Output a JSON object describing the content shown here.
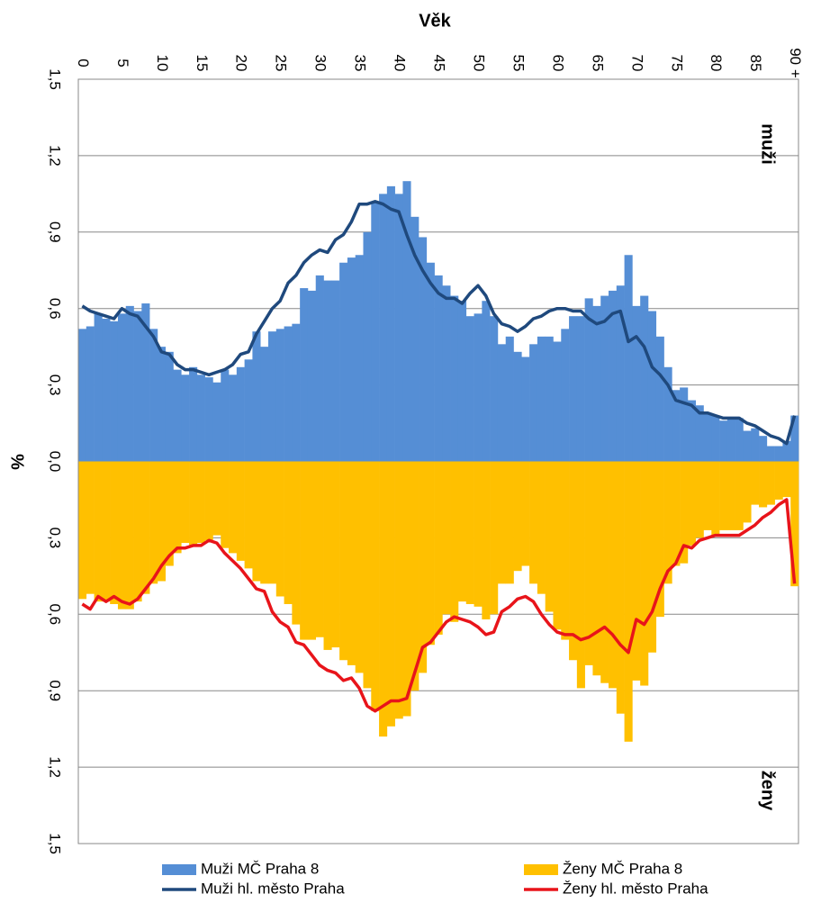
{
  "chart_data": {
    "type": "combo",
    "x_label": "Věk",
    "y_label": "%",
    "annotations": [
      "muži",
      "ženy"
    ],
    "categories": [
      "0",
      null,
      null,
      null,
      null,
      "5",
      null,
      null,
      null,
      null,
      "10",
      null,
      null,
      null,
      null,
      "15",
      null,
      null,
      null,
      null,
      "20",
      null,
      null,
      null,
      null,
      "25",
      null,
      null,
      null,
      null,
      "30",
      null,
      null,
      null,
      null,
      "35",
      null,
      null,
      null,
      null,
      "40",
      null,
      null,
      null,
      null,
      "45",
      null,
      null,
      null,
      null,
      "50",
      null,
      null,
      null,
      null,
      "55",
      null,
      null,
      null,
      null,
      "60",
      null,
      null,
      null,
      null,
      "65",
      null,
      null,
      null,
      null,
      "70",
      null,
      null,
      null,
      null,
      "75",
      null,
      null,
      null,
      null,
      "80",
      null,
      null,
      null,
      null,
      "85",
      null,
      null,
      null,
      null,
      "90 +"
    ],
    "ylim": [
      -1.5,
      1.5
    ],
    "yticks": [
      {
        "value": -1.5,
        "label": "1,5"
      },
      {
        "value": -1.2,
        "label": "1,2"
      },
      {
        "value": -0.9,
        "label": "0,9"
      },
      {
        "value": -0.6,
        "label": "0,6"
      },
      {
        "value": -0.3,
        "label": "0,3"
      },
      {
        "value": 0,
        "label": "0,0"
      },
      {
        "value": 0.3,
        "label": "0,3"
      },
      {
        "value": 0.6,
        "label": "0,6"
      },
      {
        "value": 0.9,
        "label": "0,9"
      },
      {
        "value": 1.2,
        "label": "1,2"
      },
      {
        "value": 1.5,
        "label": "1,5"
      }
    ],
    "grid": true,
    "series": [
      {
        "name": "Muži MČ Praha 8",
        "type": "bar",
        "color": "#558ed5",
        "values": [
          0.52,
          0.53,
          0.58,
          0.56,
          0.55,
          0.58,
          0.61,
          0.59,
          0.62,
          0.52,
          0.45,
          0.43,
          0.36,
          0.34,
          0.37,
          0.34,
          0.33,
          0.31,
          0.36,
          0.34,
          0.37,
          0.4,
          0.51,
          0.45,
          0.51,
          0.52,
          0.53,
          0.54,
          0.68,
          0.67,
          0.73,
          0.71,
          0.71,
          0.78,
          0.8,
          0.81,
          0.9,
          1.02,
          1.05,
          1.08,
          1.05,
          1.1,
          0.96,
          0.88,
          0.78,
          0.73,
          0.69,
          0.65,
          0.63,
          0.57,
          0.58,
          0.63,
          0.57,
          0.46,
          0.49,
          0.43,
          0.41,
          0.46,
          0.49,
          0.49,
          0.47,
          0.52,
          0.57,
          0.57,
          0.64,
          0.61,
          0.65,
          0.67,
          0.69,
          0.81,
          0.61,
          0.65,
          0.59,
          0.49,
          0.37,
          0.28,
          0.29,
          0.24,
          0.22,
          0.19,
          0.18,
          0.16,
          0.17,
          0.17,
          0.12,
          0.13,
          0.1,
          0.06,
          0.06,
          0.08,
          0.18
        ]
      },
      {
        "name": "Ženy MČ Praha 8",
        "type": "bar",
        "color": "#ffc000",
        "values": [
          -0.54,
          -0.52,
          -0.55,
          -0.55,
          -0.56,
          -0.58,
          -0.58,
          -0.55,
          -0.52,
          -0.48,
          -0.47,
          -0.41,
          -0.36,
          -0.32,
          -0.33,
          -0.32,
          -0.31,
          -0.29,
          -0.34,
          -0.36,
          -0.39,
          -0.42,
          -0.47,
          -0.48,
          -0.48,
          -0.53,
          -0.56,
          -0.64,
          -0.7,
          -0.7,
          -0.69,
          -0.74,
          -0.73,
          -0.78,
          -0.8,
          -0.83,
          -0.89,
          -0.98,
          -1.08,
          -1.04,
          -1.01,
          -1.0,
          -0.9,
          -0.83,
          -0.72,
          -0.68,
          -0.6,
          -0.63,
          -0.55,
          -0.56,
          -0.57,
          -0.62,
          -0.6,
          -0.48,
          -0.48,
          -0.43,
          -0.41,
          -0.48,
          -0.52,
          -0.59,
          -0.66,
          -0.7,
          -0.78,
          -0.89,
          -0.8,
          -0.84,
          -0.87,
          -0.89,
          -0.99,
          -1.1,
          -0.86,
          -0.88,
          -0.75,
          -0.61,
          -0.48,
          -0.41,
          -0.4,
          -0.33,
          -0.3,
          -0.27,
          -0.29,
          -0.27,
          -0.27,
          -0.27,
          -0.24,
          -0.17,
          -0.18,
          -0.17,
          -0.15,
          -0.14,
          -0.49
        ]
      },
      {
        "name": "Muži hl. město Praha",
        "type": "line",
        "color": "#1f497d",
        "values": [
          0.61,
          0.59,
          0.58,
          0.57,
          0.56,
          0.6,
          0.58,
          0.57,
          0.53,
          0.49,
          0.43,
          0.42,
          0.38,
          0.36,
          0.36,
          0.35,
          0.34,
          0.35,
          0.36,
          0.38,
          0.42,
          0.43,
          0.5,
          0.55,
          0.6,
          0.63,
          0.7,
          0.73,
          0.78,
          0.81,
          0.83,
          0.82,
          0.87,
          0.89,
          0.94,
          1.01,
          1.01,
          1.02,
          1.01,
          0.99,
          0.98,
          0.89,
          0.81,
          0.75,
          0.7,
          0.66,
          0.64,
          0.64,
          0.62,
          0.66,
          0.69,
          0.65,
          0.58,
          0.54,
          0.53,
          0.51,
          0.53,
          0.56,
          0.57,
          0.59,
          0.6,
          0.6,
          0.59,
          0.59,
          0.56,
          0.54,
          0.55,
          0.58,
          0.59,
          0.47,
          0.49,
          0.45,
          0.37,
          0.34,
          0.3,
          0.24,
          0.23,
          0.22,
          0.19,
          0.19,
          0.18,
          0.17,
          0.17,
          0.17,
          0.15,
          0.14,
          0.12,
          0.1,
          0.09,
          0.07,
          0.18
        ]
      },
      {
        "name": "Ženy hl. město Praha",
        "type": "line",
        "color": "#e8141a",
        "values": [
          -0.56,
          -0.58,
          -0.53,
          -0.55,
          -0.53,
          -0.55,
          -0.56,
          -0.54,
          -0.5,
          -0.46,
          -0.41,
          -0.37,
          -0.34,
          -0.34,
          -0.33,
          -0.33,
          -0.31,
          -0.32,
          -0.36,
          -0.39,
          -0.42,
          -0.46,
          -0.5,
          -0.51,
          -0.59,
          -0.63,
          -0.65,
          -0.71,
          -0.72,
          -0.76,
          -0.8,
          -0.82,
          -0.83,
          -0.86,
          -0.85,
          -0.89,
          -0.96,
          -0.98,
          -0.96,
          -0.94,
          -0.94,
          -0.93,
          -0.83,
          -0.73,
          -0.71,
          -0.67,
          -0.63,
          -0.61,
          -0.62,
          -0.63,
          -0.65,
          -0.68,
          -0.67,
          -0.59,
          -0.57,
          -0.54,
          -0.53,
          -0.55,
          -0.6,
          -0.64,
          -0.67,
          -0.68,
          -0.68,
          -0.7,
          -0.69,
          -0.67,
          -0.65,
          -0.68,
          -0.72,
          -0.75,
          -0.62,
          -0.64,
          -0.59,
          -0.5,
          -0.43,
          -0.4,
          -0.33,
          -0.34,
          -0.31,
          -0.3,
          -0.29,
          -0.29,
          -0.29,
          -0.29,
          -0.27,
          -0.25,
          -0.22,
          -0.2,
          -0.17,
          -0.15,
          -0.48
        ]
      }
    ]
  }
}
